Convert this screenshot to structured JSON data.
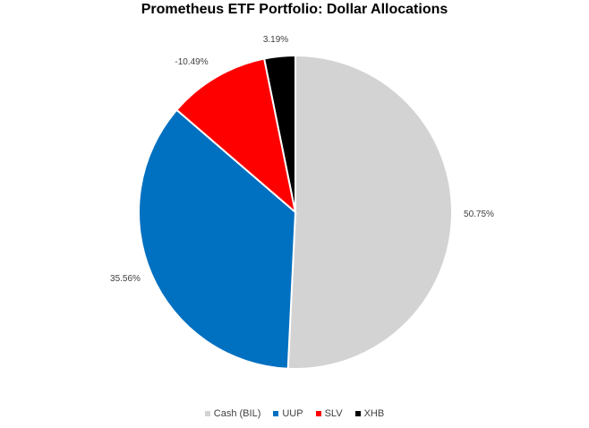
{
  "chart_data": {
    "type": "pie",
    "title": "Prometheus ETF Portfolio: Dollar Allocations",
    "categories": [
      "Cash (BIL)",
      "UUP",
      "SLV",
      "XHB"
    ],
    "values": [
      50.75,
      35.56,
      10.49,
      3.19
    ],
    "data_labels": [
      "50.75%",
      "35.56%",
      "-10.49%",
      "3.19%"
    ],
    "colors": [
      "#d3d3d3",
      "#0070c0",
      "#ff0000",
      "#000000"
    ],
    "legend_position": "bottom"
  }
}
